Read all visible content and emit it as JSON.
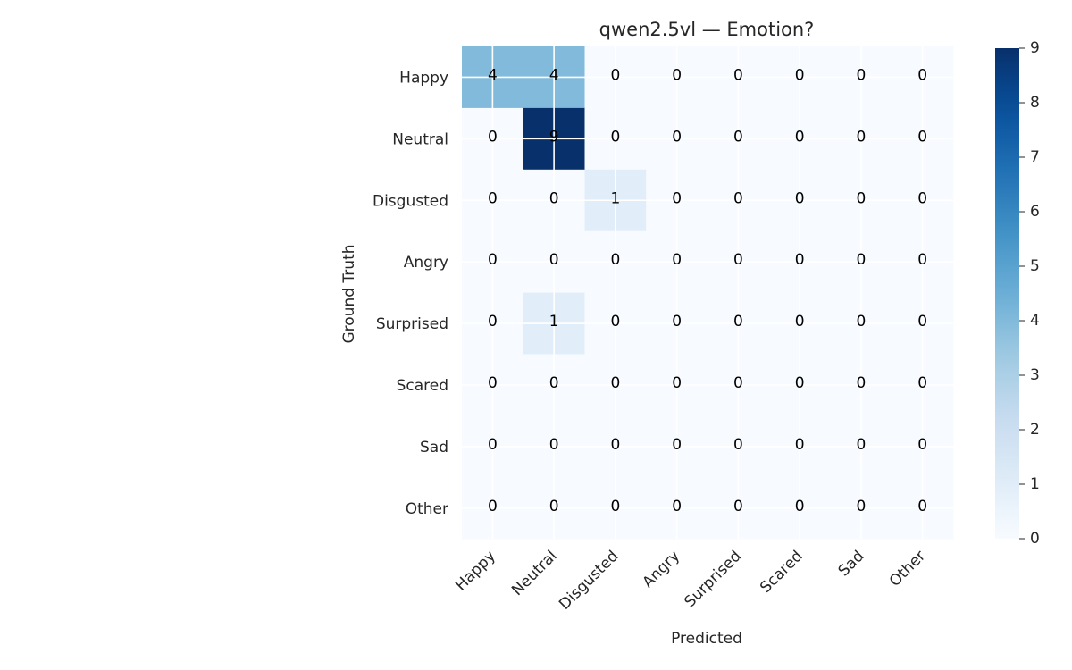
{
  "chart_data": {
    "type": "heatmap",
    "title": "qwen2.5vl — Emotion?",
    "xlabel": "Predicted",
    "ylabel": "Ground Truth",
    "x_categories": [
      "Happy",
      "Neutral",
      "Disgusted",
      "Angry",
      "Surprised",
      "Scared",
      "Sad",
      "Other"
    ],
    "y_categories": [
      "Happy",
      "Neutral",
      "Disgusted",
      "Angry",
      "Surprised",
      "Scared",
      "Sad",
      "Other"
    ],
    "values": [
      [
        4,
        4,
        0,
        0,
        0,
        0,
        0,
        0
      ],
      [
        0,
        9,
        0,
        0,
        0,
        0,
        0,
        0
      ],
      [
        0,
        0,
        1,
        0,
        0,
        0,
        0,
        0
      ],
      [
        0,
        0,
        0,
        0,
        0,
        0,
        0,
        0
      ],
      [
        0,
        1,
        0,
        0,
        0,
        0,
        0,
        0
      ],
      [
        0,
        0,
        0,
        0,
        0,
        0,
        0,
        0
      ],
      [
        0,
        0,
        0,
        0,
        0,
        0,
        0,
        0
      ],
      [
        0,
        0,
        0,
        0,
        0,
        0,
        0,
        0
      ]
    ],
    "colorbar": {
      "colormap": "Blues",
      "range": [
        0,
        9
      ],
      "ticks": [
        0,
        1,
        2,
        3,
        4,
        5,
        6,
        7,
        8,
        9
      ]
    },
    "grid": true
  }
}
